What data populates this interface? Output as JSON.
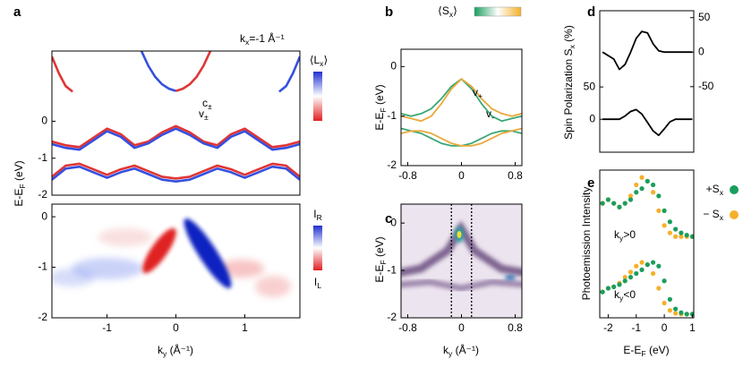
{
  "chart_data": [
    {
      "type": "line",
      "label": "a",
      "ylabel": [
        "E-E",
        "F",
        " (eV)"
      ],
      "xlim": [
        -1.8,
        1.8
      ],
      "ylim": [
        -2.0,
        1.9
      ],
      "yticks": [
        -2,
        -1,
        0
      ],
      "x": [
        -1.8,
        -1.6,
        -1.4,
        -1.2,
        -1.0,
        -0.8,
        -0.6,
        -0.4,
        -0.2,
        0,
        0.2,
        0.4,
        0.6,
        0.8,
        1.0,
        1.2,
        1.4,
        1.6,
        1.8
      ],
      "colorbar_label": [
        "⟨L",
        "x",
        "⟩"
      ],
      "annotations": [
        [
          "k",
          "x",
          "=-1 Å⁻¹"
        ],
        [
          "c",
          "±"
        ],
        [
          "v",
          "±"
        ]
      ],
      "series": [
        {
          "color": "#e03535",
          "values": [
            -0.55,
            -0.65,
            -0.7,
            -0.45,
            -0.2,
            -0.35,
            -0.65,
            -0.55,
            -0.3,
            -0.13,
            -0.3,
            -0.55,
            -0.65,
            -0.35,
            -0.2,
            -0.45,
            -0.7,
            -0.65,
            -0.55
          ]
        },
        {
          "color": "#3550e0",
          "values": [
            -0.62,
            -0.72,
            -0.77,
            -0.52,
            -0.27,
            -0.42,
            -0.72,
            -0.6,
            -0.37,
            -0.2,
            -0.37,
            -0.6,
            -0.72,
            -0.42,
            -0.27,
            -0.52,
            -0.77,
            -0.72,
            -0.62
          ]
        },
        {
          "color": "#e03535",
          "values": [
            -1.5,
            -1.2,
            -1.15,
            -1.3,
            -1.45,
            -1.3,
            -1.2,
            -1.35,
            -1.5,
            -1.55,
            -1.5,
            -1.35,
            -1.2,
            -1.3,
            -1.45,
            -1.3,
            -1.15,
            -1.2,
            -1.5
          ]
        },
        {
          "color": "#3550e0",
          "values": [
            -1.58,
            -1.28,
            -1.23,
            -1.38,
            -1.53,
            -1.38,
            -1.28,
            -1.43,
            -1.58,
            -1.63,
            -1.58,
            -1.43,
            -1.28,
            -1.38,
            -1.53,
            -1.38,
            -1.23,
            -1.28,
            -1.58
          ]
        },
        {
          "color": "#3550e0",
          "x": [
            -0.5,
            -0.4,
            -0.3,
            -0.2,
            -0.1,
            0
          ],
          "values": [
            1.9,
            1.5,
            1.2,
            1.0,
            0.88,
            0.82
          ]
        },
        {
          "color": "#e03535",
          "x": [
            0,
            0.1,
            0.2,
            0.3,
            0.4,
            0.5
          ],
          "values": [
            0.82,
            0.88,
            1.0,
            1.2,
            1.5,
            1.9
          ]
        },
        {
          "color": "#e03535",
          "x": [
            -1.8,
            -1.7,
            -1.6,
            -1.5
          ],
          "values": [
            1.75,
            1.3,
            0.95,
            0.8
          ]
        },
        {
          "color": "#3550e0",
          "x": [
            1.5,
            1.6,
            1.7,
            1.8
          ],
          "values": [
            0.8,
            0.95,
            1.3,
            1.75
          ]
        }
      ]
    },
    {
      "type": "heatmap",
      "xlabel": [
        "k",
        "y",
        " (Å⁻¹)"
      ],
      "xlim": [
        -1.8,
        1.8
      ],
      "xticks": [
        -1,
        0,
        1
      ],
      "ylim": [
        -2.0,
        0.25
      ],
      "yticks": [
        -2,
        -1,
        0
      ],
      "colorbar_top": [
        "I",
        "R"
      ],
      "colorbar_bottom": [
        "I",
        "L"
      ]
    },
    {
      "type": "line",
      "label": "b",
      "ylabel": [
        "E-E",
        "F",
        " (eV)"
      ],
      "xlim": [
        -0.9,
        0.9
      ],
      "xticks": [
        -0.8,
        0,
        0.8
      ],
      "ylim": [
        -2.0,
        0.35
      ],
      "yticks": [
        -2,
        -1,
        0
      ],
      "x": [
        -0.9,
        -0.75,
        -0.6,
        -0.45,
        -0.3,
        -0.15,
        0,
        0.15,
        0.3,
        0.45,
        0.6,
        0.75,
        0.9
      ],
      "colorbar_label": [
        "⟨S",
        "x",
        "⟩"
      ],
      "annotations": [
        [
          "v",
          "+"
        ],
        [
          "v",
          "-"
        ]
      ],
      "series": [
        {
          "color": "#3aa876",
          "values": [
            -0.95,
            -1.0,
            -0.95,
            -0.85,
            -0.65,
            -0.4,
            -0.25,
            -0.45,
            -0.75,
            -1.0,
            -1.1,
            -1.05,
            -1.0
          ]
        },
        {
          "color": "#eaa83a",
          "values": [
            -1.0,
            -1.05,
            -1.1,
            -1.0,
            -0.75,
            -0.45,
            -0.25,
            -0.4,
            -0.65,
            -0.85,
            -0.95,
            -1.0,
            -0.95
          ]
        },
        {
          "color": "#3aa876",
          "values": [
            -1.25,
            -1.3,
            -1.35,
            -1.45,
            -1.55,
            -1.6,
            -1.6,
            -1.55,
            -1.45,
            -1.35,
            -1.3,
            -1.3,
            -1.35
          ]
        },
        {
          "color": "#eaa83a",
          "values": [
            -1.35,
            -1.3,
            -1.3,
            -1.35,
            -1.45,
            -1.55,
            -1.6,
            -1.6,
            -1.55,
            -1.45,
            -1.35,
            -1.3,
            -1.25
          ]
        }
      ]
    },
    {
      "type": "heatmap",
      "label": "c",
      "ylabel": [
        "E-E",
        "F",
        " (eV)"
      ],
      "xlabel": [
        "k",
        "y",
        " (Å⁻¹)"
      ],
      "xlim": [
        -0.9,
        0.9
      ],
      "xticks": [
        -0.8,
        0,
        0.8
      ],
      "ylim": [
        -2.0,
        0.4
      ],
      "yticks": [
        -2,
        -1,
        0
      ],
      "vlines": [
        -0.15,
        0.15
      ]
    },
    {
      "type": "line",
      "label": "d",
      "ylabel": [
        "Spin Polarization S",
        "x",
        " (%)"
      ],
      "xlim": [
        -2.3,
        1.05
      ],
      "ylim": [
        -51,
        168
      ],
      "yticks": [
        0,
        50
      ],
      "y2lim": [
        -145,
        60
      ],
      "y2ticks": [
        -50,
        0,
        50
      ],
      "x": [
        -2.2,
        -1.8,
        -1.6,
        -1.4,
        -1.2,
        -1.0,
        -0.8,
        -0.6,
        -0.4,
        -0.2,
        0,
        0.2,
        0.4,
        0.6,
        1.0
      ],
      "series": [
        {
          "color": "#000000",
          "axis": "y2",
          "values": [
            0,
            -10,
            -25,
            -18,
            0,
            20,
            30,
            28,
            12,
            2,
            0,
            0,
            0,
            0,
            0
          ]
        },
        {
          "color": "#000000",
          "values": [
            0,
            0,
            0,
            5,
            12,
            15,
            8,
            -5,
            -18,
            -25,
            -15,
            -4,
            0,
            0,
            0
          ]
        }
      ]
    },
    {
      "type": "line",
      "label": "e",
      "marker": true,
      "ylabel": [
        "Photoemission Intensity"
      ],
      "xlabel": [
        "E-E",
        "F",
        " (eV)"
      ],
      "xlim": [
        -2.3,
        1.05
      ],
      "xticks": [
        -2,
        -1,
        0,
        1
      ],
      "ylim": [
        0,
        2.0
      ],
      "x": [
        -2.2,
        -2.0,
        -1.8,
        -1.6,
        -1.4,
        -1.2,
        -1.0,
        -0.8,
        -0.6,
        -0.4,
        -0.2,
        0,
        0.2,
        0.4,
        0.6,
        0.8,
        1.0
      ],
      "annotations": [
        [
          "k",
          "y",
          ">0"
        ],
        [
          "k",
          "y",
          "<0"
        ]
      ],
      "legend": [
        {
          "text": [
            "+S",
            "x"
          ],
          "color": "#1a9e5c"
        },
        {
          "text": [
            "− S",
            "x"
          ],
          "color": "#f5b02a"
        }
      ],
      "series": [
        {
          "color": "#f5b02a",
          "values": [
            1.55,
            1.6,
            1.55,
            1.5,
            1.55,
            1.65,
            1.8,
            1.9,
            1.85,
            1.7,
            1.45,
            1.25,
            1.15,
            1.1,
            1.1,
            1.1,
            1.1
          ]
        },
        {
          "color": "#1a9e5c",
          "values": [
            1.55,
            1.6,
            1.55,
            1.5,
            1.55,
            1.6,
            1.7,
            1.75,
            1.85,
            1.8,
            1.65,
            1.45,
            1.3,
            1.2,
            1.15,
            1.12,
            1.1
          ]
        },
        {
          "color": "#f5b02a",
          "values": [
            0.35,
            0.4,
            0.42,
            0.47,
            0.55,
            0.62,
            0.7,
            0.75,
            0.72,
            0.6,
            0.4,
            0.2,
            0.1,
            0.06,
            0.05,
            0.05,
            0.05
          ]
        },
        {
          "color": "#1a9e5c",
          "values": [
            0.35,
            0.4,
            0.42,
            0.45,
            0.5,
            0.55,
            0.6,
            0.65,
            0.72,
            0.75,
            0.7,
            0.5,
            0.25,
            0.12,
            0.07,
            0.05,
            0.05
          ]
        }
      ]
    }
  ]
}
